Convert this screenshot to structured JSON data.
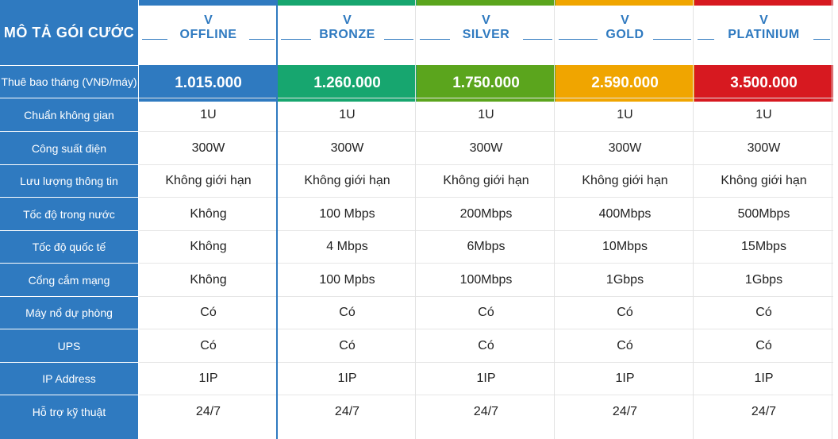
{
  "header_label": "MÔ TẢ GÓI CƯỚC",
  "row_labels": [
    "Thuê bao tháng (VNĐ/máy)",
    "Chuẩn không gian",
    "Công suất điện",
    "Lưu lượng thông tin",
    "Tốc độ trong nước",
    "Tốc độ quốc tế",
    "Cổng cắm mạng",
    "Máy nổ dự phòng",
    "UPS",
    "IP Address",
    "Hỗ trợ kỹ thuật"
  ],
  "plans": [
    {
      "prefix": "V",
      "name": "OFFLINE",
      "price": "1.015.000",
      "accent": "#2f7ac0",
      "values": [
        "1U",
        "300W",
        "Không giới hạn",
        "Không",
        "Không",
        "Không",
        "Có",
        "Có",
        "1IP",
        "24/7"
      ]
    },
    {
      "prefix": "V",
      "name": "BRONZE",
      "price": "1.260.000",
      "accent": "#17a66f",
      "values": [
        "1U",
        "300W",
        "Không giới hạn",
        "100 Mbps",
        "4 Mbps",
        "100 Mpbs",
        "Có",
        "Có",
        "1IP",
        "24/7"
      ]
    },
    {
      "prefix": "V",
      "name": "SILVER",
      "price": "1.750.000",
      "accent": "#5ba51d",
      "values": [
        "1U",
        "300W",
        "Không giới hạn",
        "200Mbps",
        "6Mbps",
        "100Mbps",
        "Có",
        "Có",
        "1IP",
        "24/7"
      ]
    },
    {
      "prefix": "V",
      "name": "GOLD",
      "price": "2.590.000",
      "accent": "#f0a500",
      "values": [
        "1U",
        "300W",
        "Không giới hạn",
        "400Mbps",
        "10Mbps",
        "1Gbps",
        "Có",
        "Có",
        "1IP",
        "24/7"
      ]
    },
    {
      "prefix": "V",
      "name": "PLATINIUM",
      "price": "3.500.000",
      "accent": "#d71920",
      "values": [
        "1U",
        "300W",
        "Không giới hạn",
        "500Mbps",
        "15Mbps",
        "1Gbps",
        "Có",
        "Có",
        "1IP",
        "24/7"
      ]
    }
  ]
}
